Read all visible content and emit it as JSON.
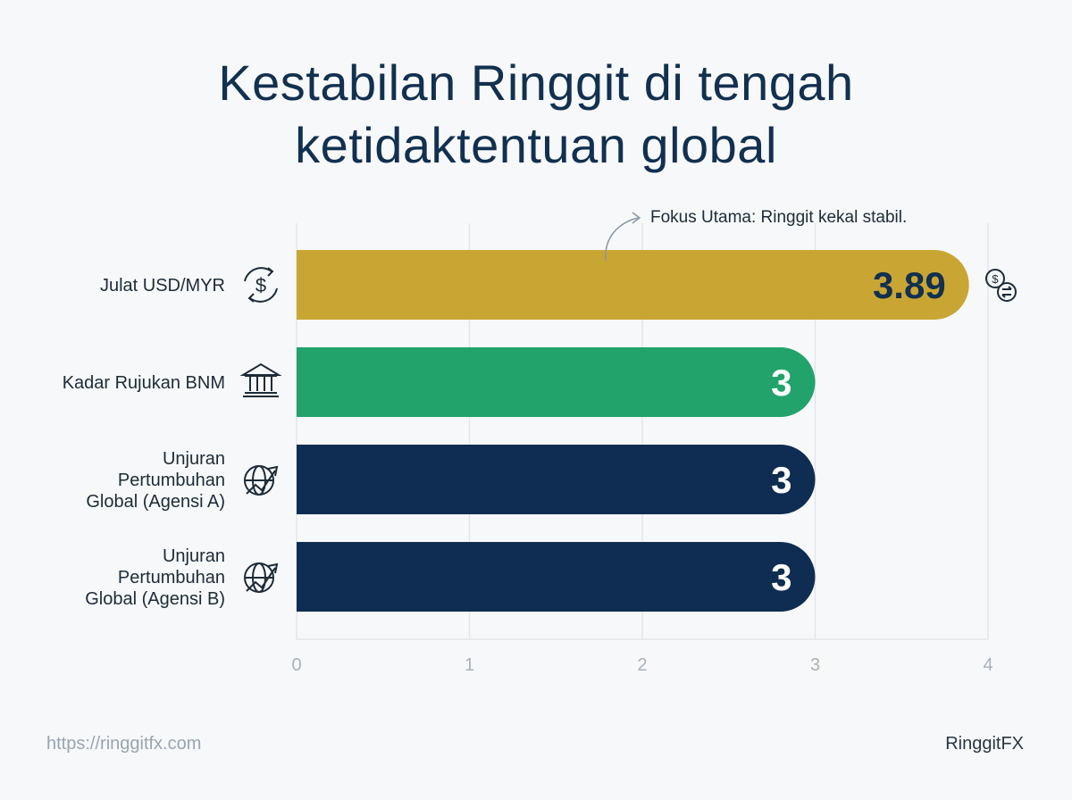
{
  "chart_data": {
    "type": "bar",
    "orientation": "horizontal",
    "title": [
      "Kestabilan Ringgit di tengah",
      "ketidaktentuan global"
    ],
    "categories": [
      [
        "Julat USD/MYR"
      ],
      [
        "Kadar Rujukan BNM"
      ],
      [
        "Unjuran",
        "Pertumbuhan",
        "Global (Agensi A)"
      ],
      [
        "Unjuran",
        "Pertumbuhan",
        "Global (Agensi B)"
      ]
    ],
    "values": [
      3.89,
      3,
      3,
      3
    ],
    "value_labels": [
      "3.89",
      "3",
      "3",
      "3"
    ],
    "bar_colors": [
      "#c9a633",
      "#22a36b",
      "#0f2d52",
      "#0f2d52"
    ],
    "label_colors": [
      "#12304f",
      "#ffffff",
      "#ffffff",
      "#ffffff"
    ],
    "category_icons": [
      "currency-exchange-icon",
      "bank-icon",
      "globe-growth-icon",
      "globe-growth-icon"
    ],
    "highlight_icon": "dollar-exchange-icon",
    "annotation": "Fokus Utama: Ringgit kekal stabil.",
    "xlim": [
      0,
      4
    ],
    "xticks": [
      "0",
      "1",
      "2",
      "3",
      "4"
    ],
    "xlabel": "",
    "ylabel": "",
    "grid": true,
    "legend": "none"
  },
  "footer": {
    "url": "https://ringgitfx.com",
    "brand": "RinggitFX"
  },
  "colors": {
    "title": "#12304f",
    "grid": "#e3e6ea",
    "tick": "#a9b1b9",
    "category_label": "#1d2b38"
  }
}
